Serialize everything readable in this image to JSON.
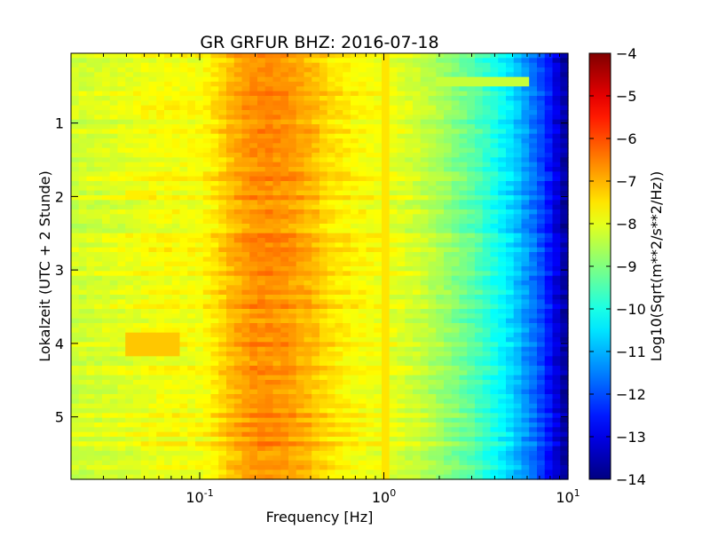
{
  "chart_data": {
    "type": "heatmap",
    "title": "GR GRFUR BHZ: 2016-07-18",
    "xlabel": "Frequency [Hz]",
    "ylabel": "Lokalzeit (UTC + 2 Stunde)",
    "x_scale": "log",
    "xlim": [
      0.02,
      10
    ],
    "ylim": [
      5.85,
      0.05
    ],
    "y_inverted": true,
    "x_ticks": [
      {
        "value": 0.1,
        "base": "10",
        "exp": "-1"
      },
      {
        "value": 1,
        "base": "10",
        "exp": "0"
      },
      {
        "value": 10,
        "base": "10",
        "exp": "1"
      }
    ],
    "y_ticks": [
      1,
      2,
      3,
      4,
      5
    ],
    "y_tick_labels": [
      "1",
      "2",
      "3",
      "4",
      "5"
    ],
    "colorbar": {
      "label": "Log10(Sqrt(m**2/s**2/Hz))",
      "min": -14,
      "max": -4,
      "ticks": [
        -4,
        -5,
        -6,
        -7,
        -8,
        -9,
        -10,
        -11,
        -12,
        -13,
        -14
      ],
      "tick_labels": [
        "−4",
        "−5",
        "−6",
        "−7",
        "−8",
        "−9",
        "−10",
        "−11",
        "−12",
        "−13",
        "−14"
      ],
      "colormap": "jet"
    },
    "spectrum_profile": {
      "frequency_hz": [
        0.02,
        0.04,
        0.06,
        0.08,
        0.1,
        0.12,
        0.15,
        0.2,
        0.25,
        0.3,
        0.4,
        0.5,
        0.7,
        1.0,
        1.5,
        2.0,
        3.0,
        4.0,
        5.0,
        6.0,
        7.0,
        8.0,
        9.0,
        10.0
      ],
      "log10_amplitude": [
        -8.2,
        -8.0,
        -7.8,
        -7.8,
        -7.8,
        -7.5,
        -7.0,
        -6.6,
        -6.6,
        -6.7,
        -7.0,
        -7.4,
        -7.7,
        -7.9,
        -8.2,
        -8.6,
        -9.3,
        -10.0,
        -10.6,
        -11.3,
        -11.9,
        -12.6,
        -13.3,
        -13.8
      ]
    },
    "notable_features": [
      {
        "frequency_range_hz": [
          0.04,
          0.08
        ],
        "time_range_h": [
          3.85,
          4.15
        ],
        "log10_amplitude": -7.2
      },
      {
        "frequency_range_hz": [
          0.04,
          0.06
        ],
        "time_range_h": [
          1.9,
          2.05
        ],
        "log10_amplitude": -7.6
      },
      {
        "frequency_range_hz": [
          1.0,
          1.06
        ],
        "time_range_h": [
          0.05,
          5.85
        ],
        "log10_amplitude": -7.5
      },
      {
        "frequency_range_hz": [
          2.0,
          6.0
        ],
        "time_range_h": [
          0.38,
          0.5
        ],
        "log10_amplitude": -8.3
      }
    ]
  }
}
